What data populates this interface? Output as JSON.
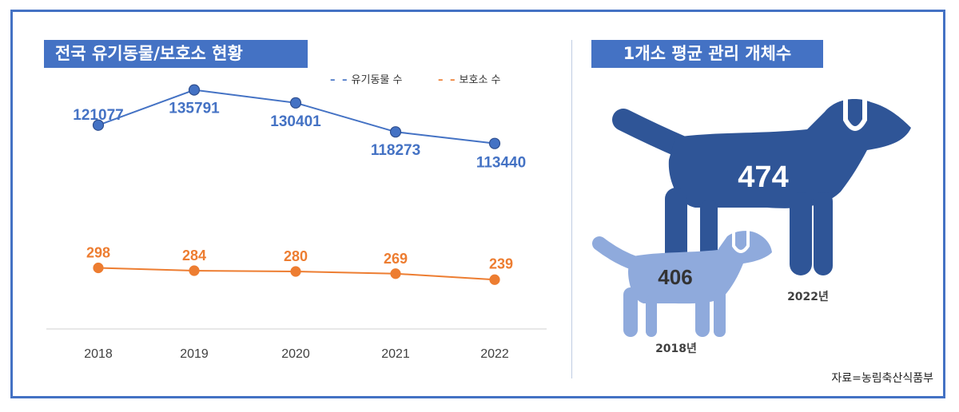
{
  "left_panel": {
    "title": "전국 유기동물/보호소 현황",
    "legend": [
      {
        "dash": "– –",
        "label": "유기동물 수",
        "color": "#4472C4"
      },
      {
        "dash": "– –",
        "label": "보호소 수",
        "color": "#ED7D31"
      }
    ]
  },
  "right_panel": {
    "title": "1개소 평균 관리 개체수",
    "big_dog": {
      "value": "474",
      "year": "2022년",
      "color": "#2F5597"
    },
    "small_dog": {
      "value": "406",
      "year": "2018년",
      "color": "#8FAADC"
    },
    "source": "자료=농림축산식품부"
  },
  "chart_data": [
    {
      "type": "line",
      "title": "전국 유기동물/보호소 현황",
      "categories": [
        "2018",
        "2019",
        "2020",
        "2021",
        "2022"
      ],
      "series": [
        {
          "name": "유기동물 수",
          "values": [
            121077,
            135791,
            130401,
            118273,
            113440
          ],
          "color": "#4472C4",
          "labels": [
            "121077",
            "135791",
            "130401",
            "118273",
            "113440"
          ]
        },
        {
          "name": "보호소 수",
          "values": [
            298,
            284,
            280,
            269,
            239
          ],
          "color": "#ED7D31",
          "labels": [
            "298",
            "284",
            "280",
            "269",
            "239"
          ]
        }
      ],
      "legend": "top-right",
      "grid": false
    },
    {
      "type": "bar",
      "title": "1개소 평균 관리 개체수",
      "categories": [
        "2018년",
        "2022년"
      ],
      "values": [
        406,
        474
      ]
    }
  ]
}
